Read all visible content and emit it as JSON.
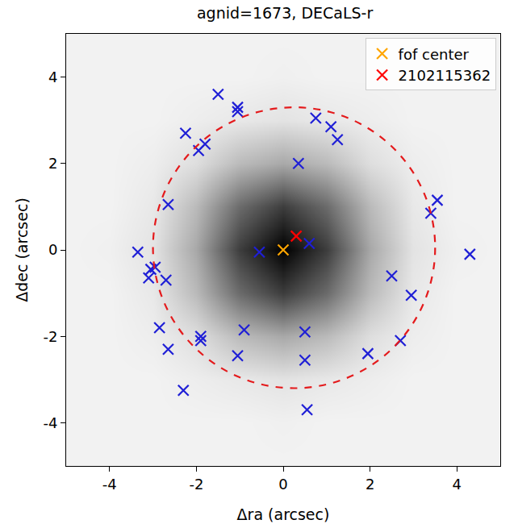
{
  "chart_data": {
    "type": "scatter",
    "title": "agnid=1673, DECaLS-r",
    "x_label": "Δra (arcsec)",
    "y_label": "Δdec (arcsec)",
    "xlim": [
      -5,
      5
    ],
    "ylim": [
      -5,
      5
    ],
    "xticks": [
      -4,
      -2,
      0,
      2,
      4
    ],
    "yticks": [
      -4,
      -2,
      0,
      2,
      4
    ],
    "grid": false,
    "legend": "top right",
    "image": {
      "x": [
        -5,
        -4,
        -3,
        -2,
        -1,
        0,
        1,
        2,
        3,
        4,
        5
      ],
      "y": [
        -5,
        -4,
        -3,
        -2,
        -1,
        0,
        1,
        2,
        3,
        4,
        5
      ],
      "zlim": [
        0,
        1
      ],
      "z": [
        [
          0.05,
          0.05,
          0.05,
          0.05,
          0.05,
          0.05,
          0.05,
          0.05,
          0.05,
          0.05,
          0.05
        ],
        [
          0.05,
          0.05,
          0.05,
          0.05,
          0.05,
          0.06,
          0.05,
          0.05,
          0.05,
          0.05,
          0.05
        ],
        [
          0.05,
          0.05,
          0.05,
          0.07,
          0.09,
          0.11,
          0.09,
          0.07,
          0.05,
          0.05,
          0.05
        ],
        [
          0.05,
          0.05,
          0.07,
          0.13,
          0.27,
          0.34,
          0.27,
          0.13,
          0.07,
          0.05,
          0.05
        ],
        [
          0.05,
          0.05,
          0.09,
          0.27,
          0.58,
          0.76,
          0.58,
          0.27,
          0.09,
          0.05,
          0.05
        ],
        [
          0.05,
          0.06,
          0.11,
          0.34,
          0.76,
          1.0,
          0.76,
          0.34,
          0.11,
          0.06,
          0.05
        ],
        [
          0.05,
          0.05,
          0.09,
          0.27,
          0.58,
          0.76,
          0.58,
          0.27,
          0.09,
          0.05,
          0.05
        ],
        [
          0.05,
          0.05,
          0.07,
          0.13,
          0.27,
          0.34,
          0.27,
          0.13,
          0.07,
          0.05,
          0.05
        ],
        [
          0.05,
          0.05,
          0.05,
          0.07,
          0.09,
          0.11,
          0.09,
          0.07,
          0.05,
          0.05,
          0.05
        ],
        [
          0.05,
          0.05,
          0.05,
          0.05,
          0.05,
          0.06,
          0.05,
          0.05,
          0.05,
          0.05,
          0.05
        ],
        [
          0.05,
          0.05,
          0.05,
          0.05,
          0.05,
          0.05,
          0.05,
          0.05,
          0.05,
          0.05,
          0.05
        ]
      ]
    },
    "circle": {
      "center": [
        0.25,
        0.05
      ],
      "radius": 3.25,
      "color": "#e41a1c",
      "line_style": "dashed"
    },
    "series": [
      {
        "color": "#1f1fd6",
        "marker": "x",
        "x": [
          -3.35,
          -3.05,
          -3.1,
          -2.95,
          -2.7,
          -2.85,
          -2.65,
          -2.65,
          -2.3,
          -1.9,
          -1.9,
          -1.05,
          -0.9,
          -2.25,
          -1.95,
          -1.8,
          -1.5,
          -1.05,
          -1.05,
          0.35,
          1.1,
          1.25,
          0.75,
          -0.55,
          0.6,
          0.5,
          0.5,
          0.55,
          1.95,
          2.5,
          2.7,
          2.95,
          3.4,
          3.55,
          4.3
        ],
        "y": [
          -0.05,
          -0.45,
          -0.65,
          -0.4,
          -0.7,
          -1.8,
          -2.3,
          1.05,
          -3.25,
          -2.0,
          -2.1,
          -2.45,
          -1.85,
          2.7,
          2.3,
          2.45,
          3.6,
          3.3,
          3.2,
          2.0,
          2.85,
          2.55,
          3.05,
          -0.05,
          0.15,
          -1.9,
          -2.55,
          -3.7,
          -2.4,
          -0.6,
          -2.1,
          -1.05,
          0.85,
          1.15,
          -0.1
        ]
      },
      {
        "name": "fof center",
        "color": "#ffa500",
        "marker": "x",
        "x": [
          0.0
        ],
        "y": [
          0.0
        ]
      },
      {
        "name": "2102115362",
        "color": "#ff0000",
        "marker": "x",
        "x": [
          0.3
        ],
        "y": [
          0.32
        ]
      }
    ]
  }
}
